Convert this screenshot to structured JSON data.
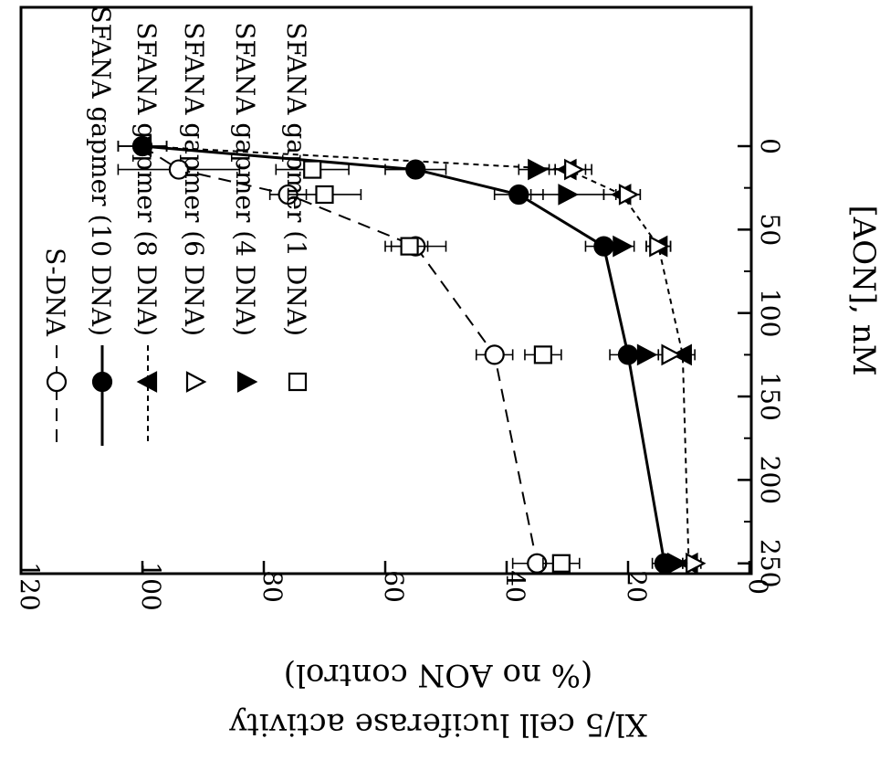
{
  "chart_data": {
    "type": "line",
    "orientation": "rotated 90 degrees clockwise (x axis runs top to bottom on the right edge)",
    "xlabel": "[AON], nM",
    "ylabel_line1": "Xl/5 cell luciferase activity",
    "ylabel_line2": "(% no AON control)",
    "xlim": [
      0,
      270
    ],
    "ylim": [
      0,
      120
    ],
    "x_ticks": [
      "0",
      "50",
      "100",
      "150",
      "200",
      "250"
    ],
    "y_ticks": [
      "0",
      "20",
      "40",
      "60",
      "80",
      "100",
      "120"
    ],
    "grid": false,
    "legend_position": "top-left",
    "series": [
      {
        "name": "S-DNA",
        "marker": "circle-open",
        "line": "long-dash",
        "points": [
          {
            "x": 0,
            "y": 100,
            "err": 4
          },
          {
            "x": 14,
            "y": 94,
            "err": 10
          },
          {
            "x": 29,
            "y": 76,
            "err": 3
          },
          {
            "x": 60,
            "y": 55,
            "err": 5
          },
          {
            "x": 125,
            "y": 42,
            "err": 3
          },
          {
            "x": 250,
            "y": 35,
            "err": 4
          }
        ]
      },
      {
        "name": "SFANA gapmer (10 DNA)",
        "marker": "circle-filled",
        "line": "solid",
        "points": [
          {
            "x": 0,
            "y": 100,
            "err": 4
          },
          {
            "x": 14,
            "y": 55,
            "err": 5
          },
          {
            "x": 29,
            "y": 38,
            "err": 4
          },
          {
            "x": 60,
            "y": 24,
            "err": 3
          },
          {
            "x": 125,
            "y": 20,
            "err": 3
          },
          {
            "x": 250,
            "y": 14,
            "err": 2
          }
        ]
      },
      {
        "name": "SFANA gapmer (8 DNA)",
        "marker": "triangle-left-filled",
        "line": "short-dash",
        "points": [
          {
            "x": 0,
            "y": 100,
            "err": 4
          },
          {
            "x": 14,
            "y": 30,
            "err": 3
          },
          {
            "x": 29,
            "y": 21,
            "err": 3
          },
          {
            "x": 60,
            "y": 15,
            "err": 2
          },
          {
            "x": 125,
            "y": 11,
            "err": 2
          },
          {
            "x": 250,
            "y": 10,
            "err": 1
          }
        ]
      },
      {
        "name": "SFANA gapmer (6 DNA)",
        "marker": "triangle-right-open",
        "line": "none",
        "points": [
          {
            "x": 14,
            "y": 29,
            "err": 3
          },
          {
            "x": 29,
            "y": 20,
            "err": 2
          },
          {
            "x": 60,
            "y": 15,
            "err": 2
          },
          {
            "x": 125,
            "y": 13,
            "err": 2
          },
          {
            "x": 250,
            "y": 9,
            "err": 1
          }
        ]
      },
      {
        "name": "SFANA gapmer (4 DNA)",
        "marker": "triangle-right-filled",
        "line": "none",
        "points": [
          {
            "x": 14,
            "y": 35,
            "err": 3
          },
          {
            "x": 29,
            "y": 30,
            "err": 6
          },
          {
            "x": 60,
            "y": 21,
            "err": 2
          },
          {
            "x": 125,
            "y": 17,
            "err": 2
          },
          {
            "x": 250,
            "y": 12,
            "err": 1
          }
        ]
      },
      {
        "name": "SFANA gapmer (1 DNA)",
        "marker": "square-open",
        "line": "none",
        "points": [
          {
            "x": 14,
            "y": 72,
            "err": 6
          },
          {
            "x": 29,
            "y": 70,
            "err": 6
          },
          {
            "x": 60,
            "y": 56,
            "err": 3
          },
          {
            "x": 125,
            "y": 34,
            "err": 3
          },
          {
            "x": 250,
            "y": 31,
            "err": 3
          }
        ]
      }
    ]
  }
}
